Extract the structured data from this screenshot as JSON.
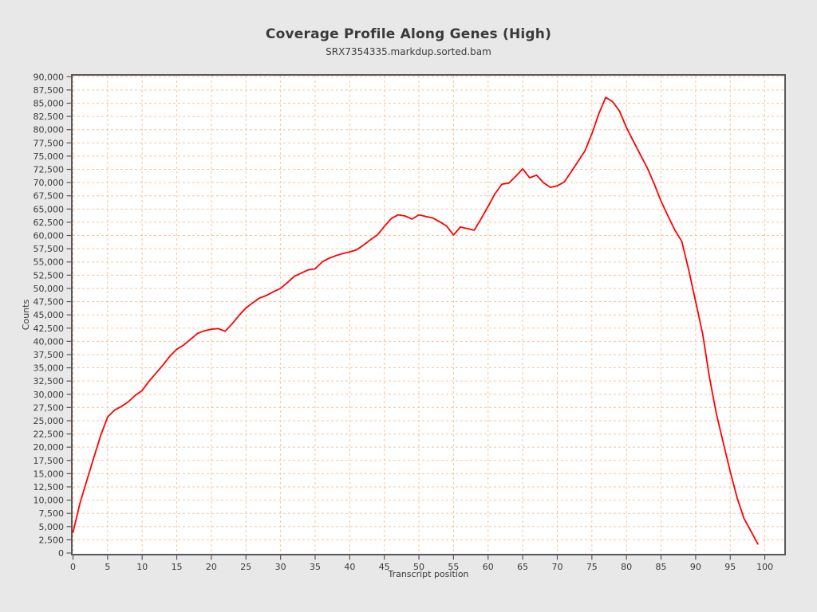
{
  "header": {
    "title": "Coverage Profile Along Genes (High)",
    "subtitle": "SRX7354335.markdup.sorted.bam"
  },
  "colors": {
    "page_background": "#e8e8e8",
    "plot_background": "#ffffff",
    "grid": "#f5c69e",
    "frame": "#58585a",
    "tick": "#58585a",
    "text": "#3a3a3a",
    "line": "#fe0000"
  },
  "chart_data": {
    "type": "line",
    "title": "Coverage Profile Along Genes (High)",
    "subtitle": "SRX7354335.markdup.sorted.bam",
    "xlabel": "Transcript position",
    "ylabel": "Counts",
    "xlim": [
      0,
      100
    ],
    "ylim": [
      0,
      90000
    ],
    "grid": true,
    "legend_position": "none",
    "x_ticks": [
      0,
      5,
      10,
      15,
      20,
      25,
      30,
      35,
      40,
      45,
      50,
      55,
      60,
      65,
      70,
      75,
      80,
      85,
      90,
      95,
      100
    ],
    "y_ticks": [
      0,
      2500,
      5000,
      7500,
      10000,
      12500,
      15000,
      17500,
      20000,
      22500,
      25000,
      27500,
      30000,
      32500,
      35000,
      37500,
      40000,
      42500,
      45000,
      47500,
      50000,
      52500,
      55000,
      57500,
      60000,
      62500,
      65000,
      67500,
      70000,
      72500,
      75000,
      77500,
      80000,
      82500,
      85000,
      87500,
      90000
    ],
    "y_tick_format": "thousands-comma",
    "series": [
      {
        "name": "SRX7354335.markdup.sorted.bam",
        "color": "#fe0000",
        "x": [
          0,
          1,
          2,
          3,
          4,
          5,
          6,
          7,
          8,
          9,
          10,
          11,
          12,
          13,
          14,
          15,
          16,
          17,
          18,
          19,
          20,
          21,
          22,
          23,
          24,
          25,
          26,
          27,
          28,
          29,
          30,
          31,
          32,
          33,
          34,
          35,
          36,
          37,
          38,
          39,
          40,
          41,
          42,
          43,
          44,
          45,
          46,
          47,
          48,
          49,
          50,
          51,
          52,
          53,
          54,
          55,
          56,
          57,
          58,
          59,
          60,
          61,
          62,
          63,
          64,
          65,
          66,
          67,
          68,
          69,
          70,
          71,
          72,
          73,
          74,
          75,
          76,
          77,
          78,
          79,
          80,
          81,
          82,
          83,
          84,
          85,
          86,
          87,
          88,
          89,
          90,
          91,
          92,
          93,
          94,
          95,
          96,
          97,
          98,
          99
        ],
        "values": [
          3900,
          9400,
          13700,
          18000,
          22200,
          25700,
          27000,
          27700,
          28600,
          29800,
          30700,
          32500,
          34000,
          35500,
          37200,
          38500,
          39300,
          40400,
          41500,
          42000,
          42300,
          42400,
          41900,
          43300,
          44900,
          46300,
          47300,
          48200,
          48700,
          49400,
          50000,
          51100,
          52300,
          52900,
          53500,
          53700,
          55000,
          55700,
          56200,
          56600,
          56900,
          57300,
          58200,
          59200,
          60100,
          61700,
          63200,
          63900,
          63700,
          63100,
          63900,
          63600,
          63300,
          62600,
          61800,
          60100,
          61600,
          61300,
          61000,
          63200,
          65500,
          67900,
          69700,
          69900,
          71200,
          72600,
          70900,
          71400,
          70000,
          69100,
          69400,
          70100,
          72000,
          74000,
          76000,
          79200,
          83000,
          86100,
          85300,
          83500,
          80400,
          77800,
          75300,
          72800,
          69800,
          66500,
          63700,
          61000,
          58900,
          53500,
          47500,
          41500,
          33200,
          26300,
          20800,
          15400,
          10400,
          6500,
          4100,
          1700
        ]
      }
    ]
  }
}
